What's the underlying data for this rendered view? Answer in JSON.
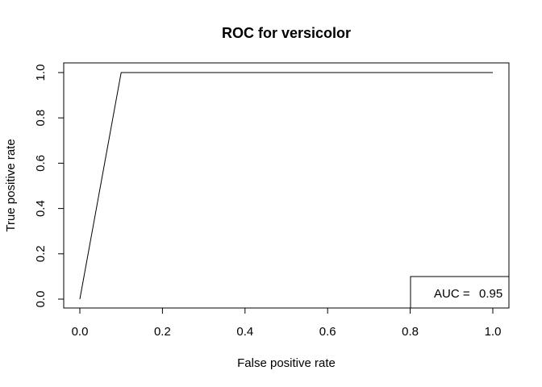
{
  "chart_data": {
    "type": "line",
    "title": "ROC for versicolor",
    "xlabel": "False positive rate",
    "ylabel": "True positive rate",
    "xlim": [
      0,
      1
    ],
    "ylim": [
      0,
      1
    ],
    "x_ticks": [
      "0.0",
      "0.2",
      "0.4",
      "0.6",
      "0.8",
      "1.0"
    ],
    "y_ticks": [
      "0.0",
      "0.2",
      "0.4",
      "0.6",
      "0.8",
      "1.0"
    ],
    "grid": false,
    "series": [
      {
        "x": [
          0.0,
          0.1,
          1.0
        ],
        "y": [
          0.0,
          1.0,
          1.0
        ],
        "color": "#000000"
      }
    ],
    "legend": {
      "placement": "bottom-right",
      "label": "AUC = ",
      "value": "0.95"
    }
  }
}
